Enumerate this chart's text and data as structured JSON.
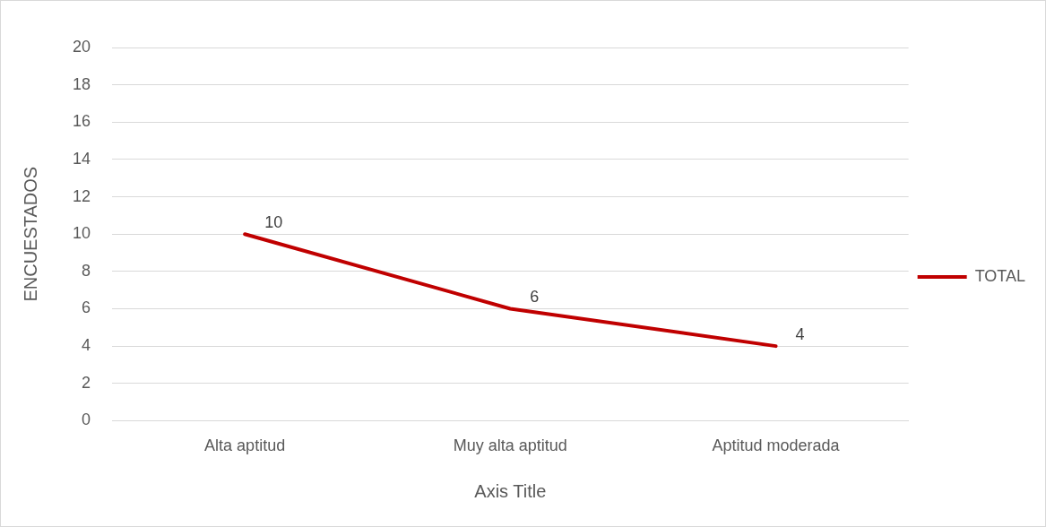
{
  "chart_data": {
    "type": "line",
    "categories": [
      "Alta aptitud",
      "Muy alta aptitud",
      "Aptitud moderada"
    ],
    "series": [
      {
        "name": "TOTAL",
        "color": "#c00000",
        "values": [
          10,
          6,
          4
        ]
      }
    ],
    "ylim": [
      0,
      20
    ],
    "yticks": [
      0,
      2,
      4,
      6,
      8,
      10,
      12,
      14,
      16,
      18,
      20
    ],
    "ylabel": "ENCUESTADOS",
    "xlabel": "Axis Title",
    "grid": "y",
    "legend": "right",
    "data_labels": true,
    "marker": "none",
    "line_style": "solid"
  }
}
